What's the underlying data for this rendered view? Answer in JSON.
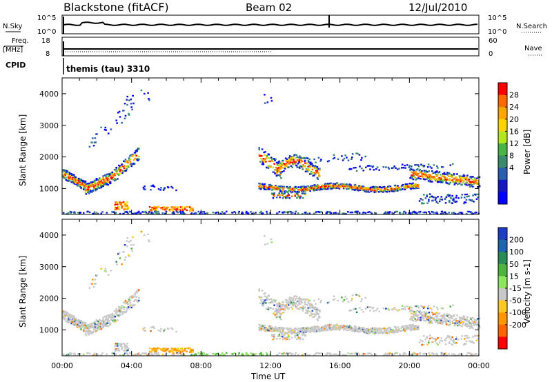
{
  "header": {
    "station": "Blackstone (fitACF)",
    "beam": "Beam 02",
    "date": "12/Jul/2010"
  },
  "noise_panel": {
    "left_label": "N.Sky",
    "left_ticks": [
      "10^5",
      "10^0"
    ],
    "right_ticks": [
      "10^5",
      "10^0"
    ],
    "right_label": "N.Search"
  },
  "freq_panel": {
    "left_label_1": "Freq.",
    "left_label_2": "[MHz]",
    "left_ticks": [
      "18",
      "8"
    ],
    "right_ticks": [
      "60",
      "0"
    ],
    "right_label": "Nave"
  },
  "cpid": {
    "label": "CPID",
    "value": "themis (tau) 3310"
  },
  "chart_data": [
    {
      "type": "heatmap",
      "panel": "power",
      "ylabel": "Slant Range [km]",
      "xlabel": "",
      "x_range_hours": [
        0,
        24
      ],
      "ylim_km": [
        180,
        4500
      ],
      "yticks": [
        "4000",
        "3000",
        "2000",
        "1000"
      ],
      "colorbar": {
        "label": "Power [dB]",
        "ticks": [
          "28",
          "24",
          "20",
          "16",
          "12",
          "8",
          "4"
        ],
        "colors": [
          "#ff0000",
          "#ff6a00",
          "#ffa500",
          "#ffd400",
          "#b4e61e",
          "#46b446",
          "#3a8a6e",
          "#2a5fb0",
          "#1616c8",
          "#0000ff"
        ]
      }
    },
    {
      "type": "heatmap",
      "panel": "velocity",
      "ylabel": "Slant Range [km]",
      "xlabel": "Time UT",
      "x_range_hours": [
        0,
        24
      ],
      "ylim_km": [
        180,
        4500
      ],
      "yticks": [
        "4000",
        "3000",
        "2000",
        "1000"
      ],
      "xticks": [
        "00:00",
        "04:00",
        "08:00",
        "12:00",
        "16:00",
        "20:00",
        "00:00"
      ],
      "colorbar": {
        "label": "Velocity [m s-1]",
        "ticks": [
          "200",
          "100",
          "50",
          "15",
          "-15",
          "-50",
          "-100",
          "-200"
        ],
        "colors": [
          "#1e3cc8",
          "#1e64b4",
          "#2a8a5a",
          "#4cb43c",
          "#8ce65a",
          "#c8c8c8",
          "#ffc81e",
          "#ff9600",
          "#ff6400",
          "#ff0000"
        ]
      }
    }
  ]
}
